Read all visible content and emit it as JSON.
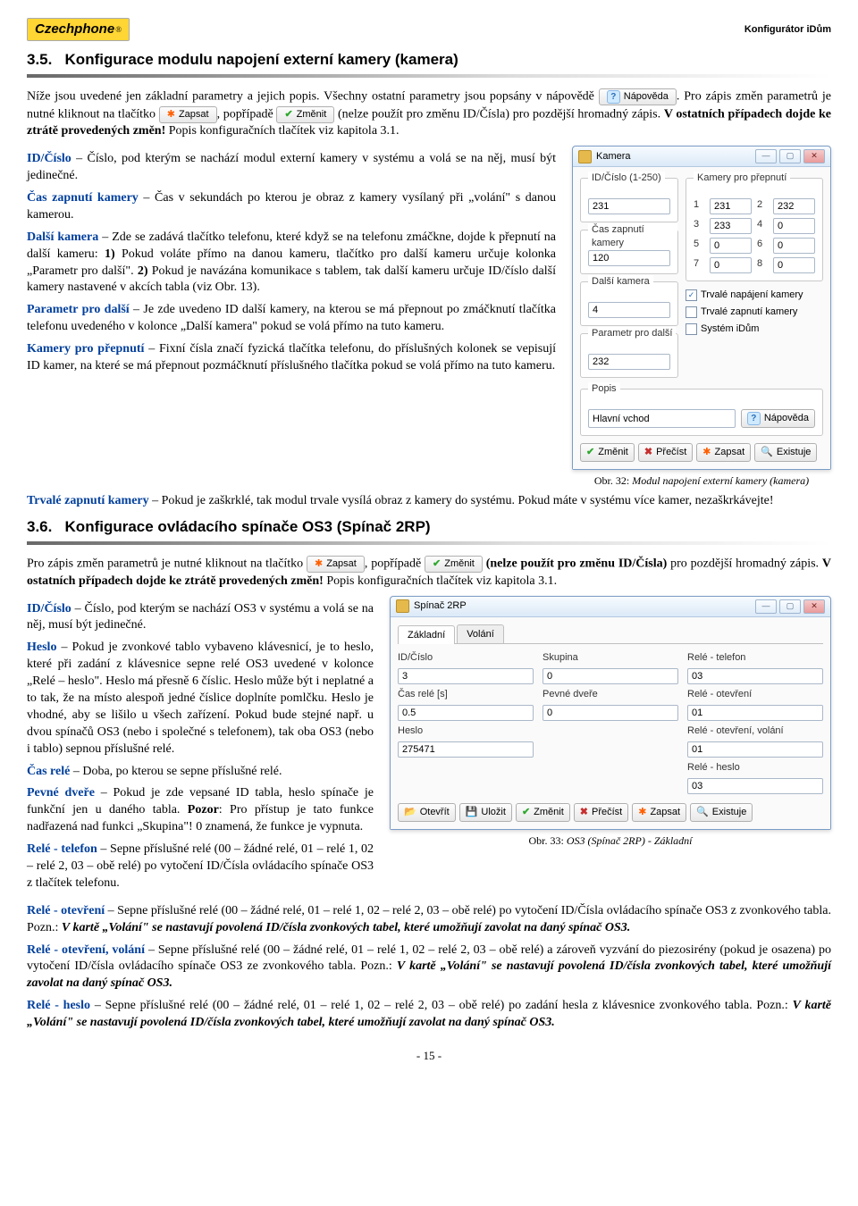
{
  "header": {
    "logo_text": "Czechphone",
    "right": "Konfigurátor iDům"
  },
  "sec35": {
    "num": "3.5.",
    "title": "Konfigurace modulu napojení externí kamery (kamera)"
  },
  "intro1": {
    "p1_a": "Níže jsou uvedené jen základní parametry a jejich popis. Všechny ostatní parametry jsou popsány v nápovědě ",
    "help_btn": "Nápověda",
    "p1_b": ". Pro zápis změn parametrů je nutné kliknout na tlačítko ",
    "btn_zapsat": "Zapsat",
    "p1_c": ", popřípadě ",
    "btn_zmenit": "Změnit",
    "p1_d": " (nelze použít pro změnu ID/Čísla) pro pozdější hromadný zápis. ",
    "bold1": "V ostatních případech dojde ke ztrátě provedených změn!",
    "p1_e": " Popis konfiguračních tlačítek viz kapitola 3.1."
  },
  "defs35": {
    "id_cislo_lbl": "ID/Číslo",
    "id_cislo_txt": " – Číslo, pod kterým se nachází modul externí kamery v systému a volá se na něj, musí být jedinečné.",
    "cas_lbl": "Čas zapnutí kamery",
    "cas_txt": " – Čas v sekundách po kterou je obraz z kamery vysílaný při „volání\" s danou kamerou.",
    "dalsi_lbl": "Další kamera",
    "dalsi_txt_a": " – Zde se zadává tlačítko telefonu, které když se na telefonu zmáčkne, dojde k přepnutí na další kameru: ",
    "dalsi_1": "1)",
    "dalsi_txt_b": " Pokud voláte přímo na danou kameru, tlačítko pro další kameru určuje kolonka „Parametr pro další\". ",
    "dalsi_2": "2)",
    "dalsi_txt_c": " Pokud je navázána komunikace s tablem, tak další kameru určuje ID/číslo další kamery nastavené v akcích tabla (viz Obr. 13).",
    "param_lbl": "Parametr pro další",
    "param_txt": " – Je zde uvedeno ID další kamery, na kterou se má přepnout po zmáčknutí tlačítka telefonu uvedeného v kolonce „Další kamera\" pokud se volá přímo na tuto kameru.",
    "kamery_lbl": "Kamery pro přepnutí",
    "kamery_txt": " – Fixní čísla značí fyzická tlačítka telefonu, do příslušných kolonek se vepisují ID kamer, na které se má přepnout pozmáčknutí příslušného tlačítka pokud se volá přímo na tuto kameru.",
    "trvale_lbl": "Trvalé zapnutí kamery",
    "trvale_txt": " – Pokud je zaškrklé, tak modul trvale vysílá obraz z kamery do systému. Pokud máte v systému více kamer, nezaškrkávejte!"
  },
  "fig32": {
    "win_title": "Kamera",
    "grp_id": "ID/Číslo (1-250)",
    "id_val": "231",
    "grp_kam": "Kamery pro přepnutí",
    "kam": [
      {
        "n": "1",
        "v": "231"
      },
      {
        "n": "2",
        "v": "232"
      },
      {
        "n": "3",
        "v": "233"
      },
      {
        "n": "4",
        "v": "0"
      },
      {
        "n": "5",
        "v": "0"
      },
      {
        "n": "6",
        "v": "0"
      },
      {
        "n": "7",
        "v": "0"
      },
      {
        "n": "8",
        "v": "0"
      }
    ],
    "grp_cas": "Čas zapnutí kamery",
    "cas_val": "120",
    "grp_dalsi": "Další kamera",
    "dalsi_val": "4",
    "grp_param": "Parametr pro další",
    "param_val": "232",
    "chk1": "Trvalé napájení kamery",
    "chk1_checked": true,
    "chk2": "Trvalé zapnutí kamery",
    "chk2_checked": false,
    "chk3": "Systém iDům",
    "chk3_checked": false,
    "grp_popis": "Popis",
    "popis_val": "Hlavní vchod",
    "btn_napoveda": "Nápověda",
    "btn_zmenit": "Změnit",
    "btn_precist": "Přečíst",
    "btn_zapsat": "Zapsat",
    "btn_existuje": "Existuje",
    "caption": "Obr. 32: Modul napojení externí kamery (kamera)"
  },
  "sec36": {
    "num": "3.6.",
    "title": "Konfigurace ovládacího spínače OS3 (Spínač 2RP)"
  },
  "intro2": {
    "p1_a": "Pro zápis změn parametrů je nutné kliknout na tlačítko ",
    "btn_zapsat": "Zapsat",
    "p1_b": ", popřípadě ",
    "btn_zmenit": "Změnit",
    "p1_c": " (nelze použít pro změnu ID/Čísla)",
    "p1_d": " pro pozdější hromadný zápis. ",
    "bold1": "V ostatních případech dojde ke ztrátě provedených změn!",
    "p1_e": " Popis konfiguračních tlačítek viz kapitola 3.1."
  },
  "defs36": {
    "id_lbl": "ID/Číslo",
    "id_txt": " – Číslo, pod kterým se nachází OS3 v systému a volá se na něj, musí být jedinečné.",
    "heslo_lbl": "Heslo",
    "heslo_txt": " – Pokud je zvonkové tablo vybaveno klávesnicí, je to heslo, které při zadání z klávesnice sepne relé OS3 uvedené v kolonce „Relé – heslo\". Heslo má přesně 6 číslic. Heslo může být i neplatné a to tak, že na místo alespoň jedné číslice doplníte pomlčku. Heslo je vhodné, aby se lišilo u všech zařízení. Pokud bude stejné např. u dvou spínačů OS3 (nebo i společné s telefonem), tak oba OS3 (nebo i tablo) sepnou příslušné relé.",
    "casrele_lbl": "Čas relé",
    "casrele_txt": " – Doba, po kterou se sepne příslušné relé.",
    "pevne_lbl": "Pevné dveře",
    "pevne_txt_a": " – Pokud je zde vepsané ID tabla, heslo spínače je funkční jen u daného tabla. ",
    "pevne_pozor": "Pozor",
    "pevne_txt_b": ": Pro přístup je tato funkce nadřazená nad funkci „Skupina\"! 0 znamená, že funkce je vypnuta.",
    "reletel_lbl": "Relé - telefon",
    "reletel_txt": " – Sepne příslušné relé (00 – žádné relé, 01 – relé 1, 02 – relé 2, 03 – obě relé) po vytočení ID/Čísla ovládacího spínače OS3 z tlačítek telefonu.",
    "releotv_lbl": "Relé - otevření",
    "releotv_txt_a": " – Sepne příslušné relé (00 – žádné relé, 01 – relé 1, 02 – relé 2, 03 – obě relé) po vytočení ID/Čísla ovládacího spínače OS3 z zvonkového tabla. Pozn.: ",
    "releotv_it": "V kartě „Volání\" se nastavují povolená ID/čísla zvonkových tabel, které umožňují zavolat na daný spínač OS3.",
    "releotvv_lbl": "Relé - otevření, volání",
    "releotvv_txt_a": " – Sepne příslušné relé (00 – žádné relé, 01 – relé 1, 02 – relé 2, 03 – obě relé) a zároveň vyzvání do piezosirény (pokud je osazena) po vytočení ID/čísla ovládacího spínače OS3 ze zvonkového tabla. Pozn.: ",
    "releotvv_it": "V kartě „Volání\" se nastavují povolená ID/čísla zvonkových tabel, které umožňují zavolat na daný spínač OS3.",
    "releh_lbl": "Relé - heslo",
    "releh_txt_a": " – Sepne příslušné relé (00 – žádné relé, 01 – relé 1, 02 – relé 2, 03 – obě relé) po zadání hesla z klávesnice zvonkového tabla. Pozn.: ",
    "releh_it": "V kartě „Volání\" se nastavují povolená ID/čísla zvonkových tabel, které umožňují zavolat na daný spínač OS3."
  },
  "fig33": {
    "win_title": "Spínač 2RP",
    "tab1": "Základní",
    "tab2": "Volání",
    "lbl_id": "ID/Číslo",
    "val_id": "3",
    "lbl_sk": "Skupina",
    "val_sk": "0",
    "lbl_rt": "Relé - telefon",
    "val_rt": "03",
    "lbl_cr": "Čas relé [s]",
    "val_cr": "0.5",
    "lbl_pd": "Pevné dveře",
    "val_pd": "0",
    "lbl_ro": "Relé - otevření",
    "val_ro": "01",
    "lbl_he": "Heslo",
    "val_he": "275471",
    "lbl_rov": "Relé - otevření, volání",
    "val_rov": "01",
    "lbl_rh": "Relé - heslo",
    "val_rh": "03",
    "btn_otevrit": "Otevřít",
    "btn_ulozit": "Uložit",
    "btn_zmenit": "Změnit",
    "btn_precist": "Přečíst",
    "btn_zapsat": "Zapsat",
    "btn_existuje": "Existuje",
    "caption": "Obr. 33: OS3 (Spínač 2RP) - Základní"
  },
  "pagenum": "- 15 -"
}
